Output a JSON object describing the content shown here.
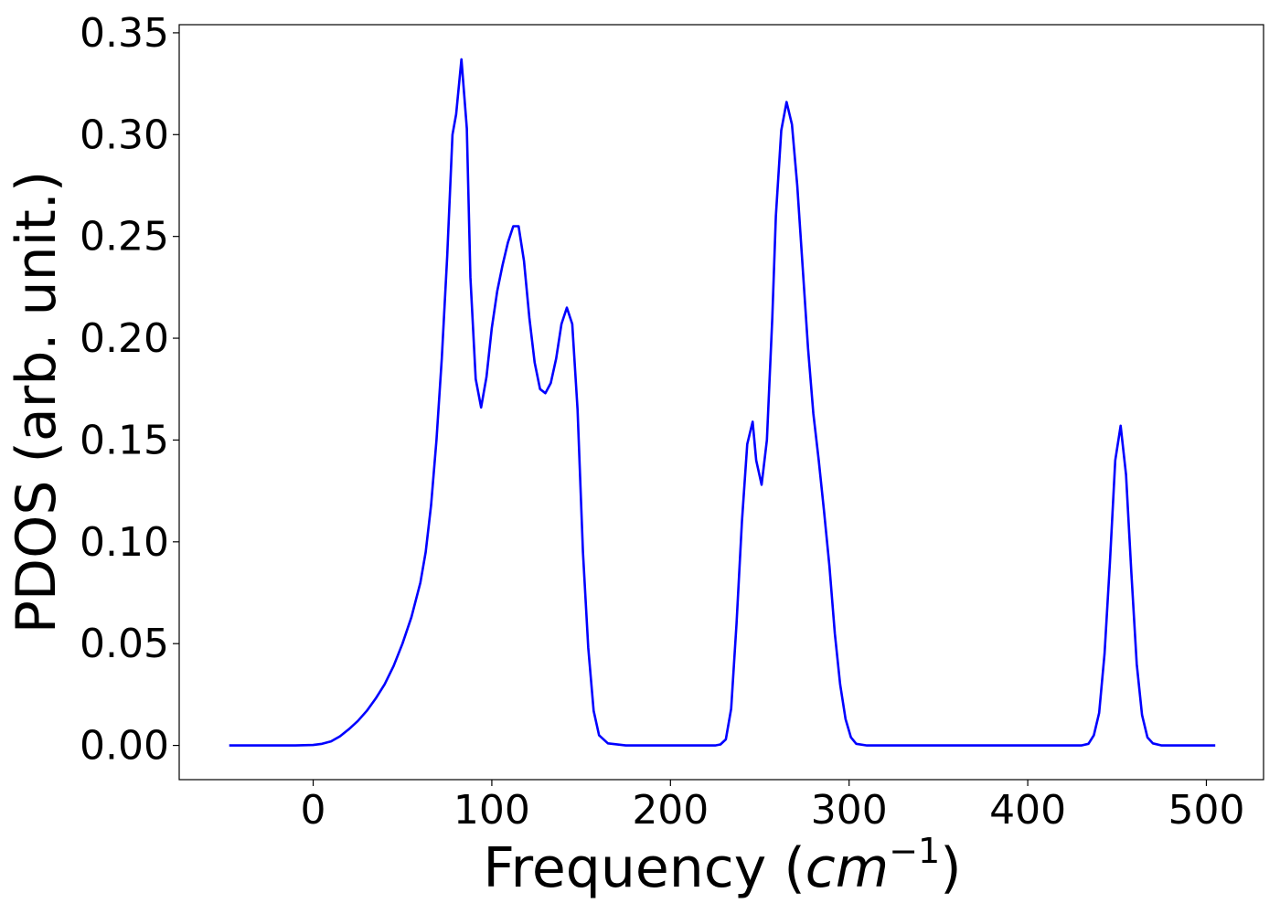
{
  "chart_data": {
    "type": "line",
    "xlabel_main": "Frequency (",
    "xlabel_unit": "cm",
    "xlabel_exp": "−1",
    "xlabel_close": ")",
    "ylabel": "PDOS (arb. unit.)",
    "xlim": [
      -75,
      532
    ],
    "ylim": [
      -0.0168,
      0.354
    ],
    "x_ticks": [
      0,
      100,
      200,
      300,
      400,
      500
    ],
    "x_tick_labels": [
      "0",
      "100",
      "200",
      "300",
      "400",
      "500"
    ],
    "y_ticks": [
      0.0,
      0.05,
      0.1,
      0.15,
      0.2,
      0.25,
      0.3,
      0.35
    ],
    "y_tick_labels": [
      "0.00",
      "0.05",
      "0.10",
      "0.15",
      "0.20",
      "0.25",
      "0.30",
      "0.35"
    ],
    "grid": false,
    "series": [
      {
        "color": "#0000ff",
        "x": [
          -47,
          -40,
          -30,
          -20,
          -10,
          0,
          5,
          10,
          15,
          20,
          25,
          30,
          35,
          40,
          45,
          50,
          55,
          60,
          63,
          66,
          69,
          72,
          75,
          78,
          80,
          83,
          86,
          88,
          91,
          94,
          97,
          100,
          103,
          106,
          109,
          112,
          115,
          118,
          121,
          124,
          127,
          130,
          133,
          136,
          139,
          142,
          145,
          148,
          151,
          154,
          157,
          160,
          165,
          175,
          200,
          220,
          225,
          228,
          231,
          234,
          237,
          240,
          243,
          246,
          248,
          251,
          254,
          257,
          259,
          262,
          265,
          268,
          271,
          274,
          277,
          280,
          283,
          286,
          289,
          292,
          295,
          298,
          301,
          304,
          310,
          350,
          400,
          430,
          434,
          437,
          440,
          443,
          446,
          449,
          452,
          455,
          458,
          461,
          464,
          467,
          470,
          475,
          490,
          505
        ],
        "y": [
          0,
          0,
          0,
          0,
          0,
          0.0002,
          0.0008,
          0.002,
          0.0045,
          0.008,
          0.012,
          0.017,
          0.023,
          0.03,
          0.039,
          0.05,
          0.063,
          0.08,
          0.095,
          0.118,
          0.15,
          0.19,
          0.24,
          0.3,
          0.31,
          0.337,
          0.303,
          0.23,
          0.18,
          0.166,
          0.181,
          0.205,
          0.223,
          0.236,
          0.247,
          0.255,
          0.255,
          0.238,
          0.21,
          0.188,
          0.175,
          0.173,
          0.178,
          0.19,
          0.207,
          0.215,
          0.207,
          0.165,
          0.095,
          0.048,
          0.017,
          0.005,
          0.001,
          0,
          0,
          0,
          0,
          0.0005,
          0.003,
          0.018,
          0.06,
          0.11,
          0.148,
          0.159,
          0.14,
          0.128,
          0.15,
          0.21,
          0.26,
          0.302,
          0.316,
          0.305,
          0.275,
          0.235,
          0.195,
          0.163,
          0.14,
          0.115,
          0.088,
          0.055,
          0.03,
          0.013,
          0.004,
          0.0008,
          0,
          0,
          0,
          0,
          0.0008,
          0.005,
          0.016,
          0.045,
          0.09,
          0.14,
          0.157,
          0.133,
          0.085,
          0.04,
          0.015,
          0.004,
          0.001,
          0,
          0,
          0
        ]
      }
    ]
  }
}
